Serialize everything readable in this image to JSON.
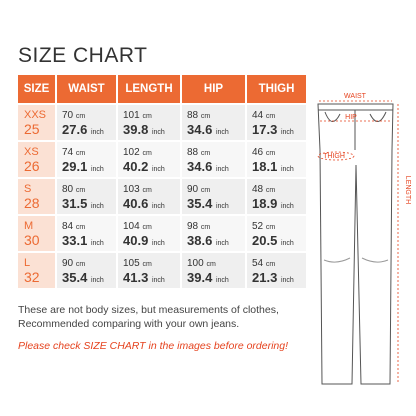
{
  "title": "SIZE CHART",
  "table": {
    "header": [
      "SIZE",
      "WAIST",
      "LENGTH",
      "HIP",
      "THIGH"
    ],
    "units": {
      "cm": "cm",
      "inch": "inch"
    },
    "rows": [
      {
        "size_letter": "XXS",
        "size_number": "25",
        "cells": [
          {
            "cm": "70",
            "inch": "27.6"
          },
          {
            "cm": "101",
            "inch": "39.8"
          },
          {
            "cm": "88",
            "inch": "34.6"
          },
          {
            "cm": "44",
            "inch": "17.3"
          }
        ]
      },
      {
        "size_letter": "XS",
        "size_number": "26",
        "cells": [
          {
            "cm": "74",
            "inch": "29.1"
          },
          {
            "cm": "102",
            "inch": "40.2"
          },
          {
            "cm": "88",
            "inch": "34.6"
          },
          {
            "cm": "46",
            "inch": "18.1"
          }
        ]
      },
      {
        "size_letter": "S",
        "size_number": "28",
        "cells": [
          {
            "cm": "80",
            "inch": "31.5"
          },
          {
            "cm": "103",
            "inch": "40.6"
          },
          {
            "cm": "90",
            "inch": "35.4"
          },
          {
            "cm": "48",
            "inch": "18.9"
          }
        ]
      },
      {
        "size_letter": "M",
        "size_number": "30",
        "cells": [
          {
            "cm": "84",
            "inch": "33.1"
          },
          {
            "cm": "104",
            "inch": "40.9"
          },
          {
            "cm": "98",
            "inch": "38.6"
          },
          {
            "cm": "52",
            "inch": "20.5"
          }
        ]
      },
      {
        "size_letter": "L",
        "size_number": "32",
        "cells": [
          {
            "cm": "90",
            "inch": "35.4"
          },
          {
            "cm": "105",
            "inch": "41.3"
          },
          {
            "cm": "100",
            "inch": "39.4"
          },
          {
            "cm": "54",
            "inch": "21.3"
          }
        ]
      }
    ]
  },
  "notes": [
    "These are not body sizes, but measurements of clothes,",
    "Recommended comparing with your own jeans."
  ],
  "warning": "Please check SIZE CHART in the images before ordering!",
  "diagram": {
    "labels": {
      "waist": "WAIST",
      "hip": "HIP",
      "thigh": "THIGH",
      "length": "LENGTH"
    }
  }
}
